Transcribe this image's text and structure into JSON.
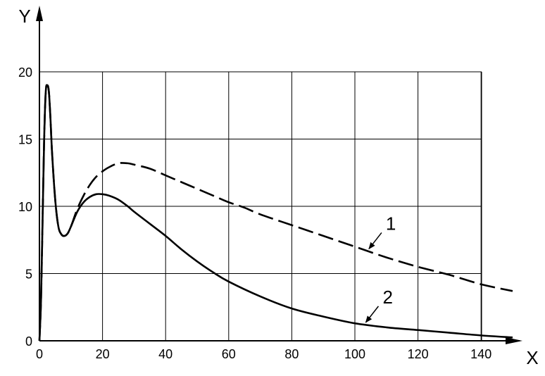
{
  "chart_data": {
    "type": "line",
    "xlabel": "X",
    "ylabel": "Y",
    "xlim": [
      0,
      150
    ],
    "ylim": [
      0,
      20
    ],
    "x_ticks": [
      0,
      20,
      40,
      60,
      80,
      100,
      120,
      140
    ],
    "y_ticks": [
      0,
      5,
      10,
      15,
      20
    ],
    "grid": true,
    "series": [
      {
        "name": "1",
        "style": "dashed",
        "color": "#000000",
        "x": [
          0,
          0.5,
          1,
          1.5,
          2,
          2.5,
          3,
          3.5,
          4,
          5,
          6,
          7,
          8,
          9,
          10,
          12,
          14,
          16,
          18,
          20,
          22,
          25,
          28,
          30,
          35,
          40,
          45,
          50,
          55,
          60,
          65,
          70,
          80,
          90,
          100,
          110,
          120,
          130,
          140,
          150
        ],
        "y": [
          0,
          3,
          9,
          15,
          18.5,
          19,
          18.5,
          16.5,
          14,
          10.5,
          8.5,
          7.9,
          7.8,
          8,
          8.5,
          9.8,
          10.8,
          11.6,
          12.2,
          12.6,
          12.9,
          13.2,
          13.2,
          13.1,
          12.8,
          12.3,
          11.8,
          11.3,
          10.8,
          10.3,
          9.9,
          9.4,
          8.6,
          7.8,
          7.0,
          6.2,
          5.5,
          4.9,
          4.2,
          3.7
        ]
      },
      {
        "name": "2",
        "style": "solid",
        "color": "#000000",
        "x": [
          0,
          0.5,
          1,
          1.5,
          2,
          2.5,
          3,
          3.5,
          4,
          5,
          6,
          7,
          8,
          9,
          10,
          12,
          14,
          16,
          18,
          20,
          22,
          25,
          28,
          30,
          35,
          40,
          45,
          50,
          55,
          60,
          70,
          80,
          90,
          100,
          110,
          120,
          130,
          140,
          150
        ],
        "y": [
          0,
          3,
          9,
          15,
          18.5,
          19,
          18.5,
          16.5,
          14,
          10.5,
          8.5,
          7.9,
          7.8,
          8,
          8.5,
          9.6,
          10.3,
          10.7,
          10.9,
          10.9,
          10.8,
          10.5,
          10.0,
          9.6,
          8.7,
          7.8,
          6.8,
          5.9,
          5.1,
          4.4,
          3.3,
          2.4,
          1.8,
          1.3,
          1.0,
          0.8,
          0.6,
          0.4,
          0.25
        ]
      }
    ],
    "annotations": [
      {
        "text": "1",
        "series": "1"
      },
      {
        "text": "2",
        "series": "2"
      }
    ]
  }
}
